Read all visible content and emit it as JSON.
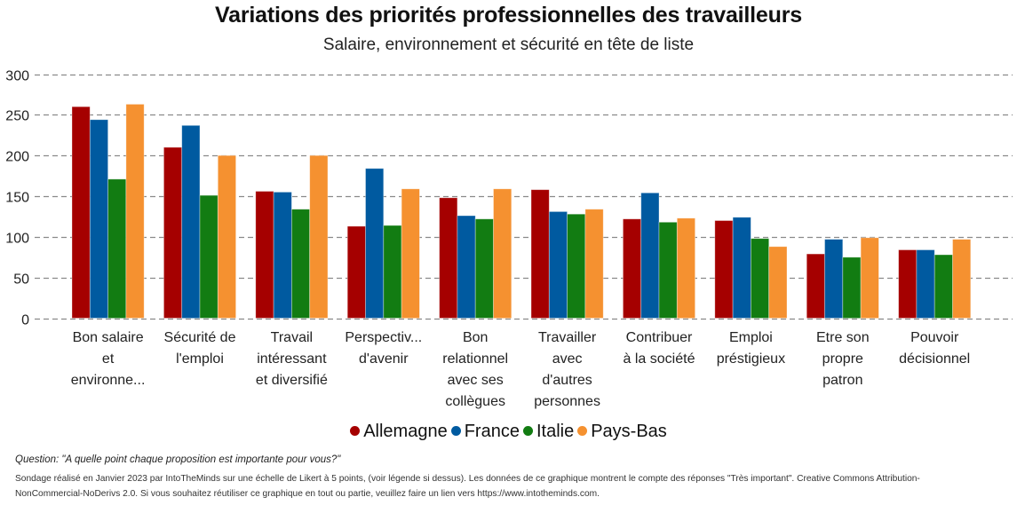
{
  "chart_data": {
    "type": "bar",
    "title": "Variations des priorités professionnelles des travailleurs",
    "subtitle": "Salaire, environnement et sécurité en tête de liste",
    "xlabel": "",
    "ylabel": "",
    "ylim": [
      0,
      300
    ],
    "yticks": [
      0,
      50,
      100,
      150,
      200,
      250,
      300
    ],
    "grid": true,
    "legend_position": "bottom-center",
    "categories": [
      "Bon salaire et environne...",
      "Sécurité de l'emploi",
      "Travail intéressant et diversifié",
      "Perspectiv... d'avenir",
      "Bon relationnel avec ses collègues",
      "Travailler avec d'autres personnes",
      "Contribuer à la société",
      "Emploi préstigieux",
      "Etre son propre patron",
      "Pouvoir décisionnel"
    ],
    "category_lines": [
      [
        "Bon salaire",
        "et",
        "environne..."
      ],
      [
        "Sécurité de",
        "l'emploi"
      ],
      [
        "Travail",
        "intéressant",
        "et diversifié"
      ],
      [
        "Perspectiv...",
        "d'avenir"
      ],
      [
        "Bon",
        "relationnel",
        "avec ses",
        "collègues"
      ],
      [
        "Travailler",
        "avec",
        "d'autres",
        "personnes"
      ],
      [
        "Contribuer",
        "à la société"
      ],
      [
        "Emploi",
        "préstigieux"
      ],
      [
        "Etre son",
        "propre",
        "patron"
      ],
      [
        "Pouvoir",
        "décisionnel"
      ]
    ],
    "series": [
      {
        "name": "Allemagne",
        "color": "#A50000",
        "values": [
          260,
          210,
          156,
          113,
          148,
          158,
          122,
          120,
          79,
          84
        ]
      },
      {
        "name": "France",
        "color": "#005AA0",
        "values": [
          244,
          237,
          155,
          184,
          126,
          131,
          154,
          124,
          97,
          84
        ]
      },
      {
        "name": "Italie",
        "color": "#127C12",
        "values": [
          171,
          151,
          134,
          114,
          122,
          128,
          118,
          98,
          75,
          78
        ]
      },
      {
        "name": "Pays-Bas",
        "color": "#F59130",
        "values": [
          263,
          200,
          200,
          159,
          159,
          134,
          123,
          88,
          99,
          97
        ]
      }
    ]
  },
  "footer": {
    "question": "Question: \"A quelle point chaque proposition est importante pour vous?\"",
    "source_line1": "Sondage réalisé en Janvier 2023 par IntoTheMinds sur une échelle de Likert à 5 points, (voir légende si dessus). Les données de ce graphique montrent le compte des réponses \"Très important\". Creative Commons Attribution-",
    "source_line2": "NonCommercial-NoDerivs 2.0. Si vous souhaitez réutiliser ce graphique en tout ou partie, veuillez faire un lien vers https://www.intotheminds.com."
  }
}
